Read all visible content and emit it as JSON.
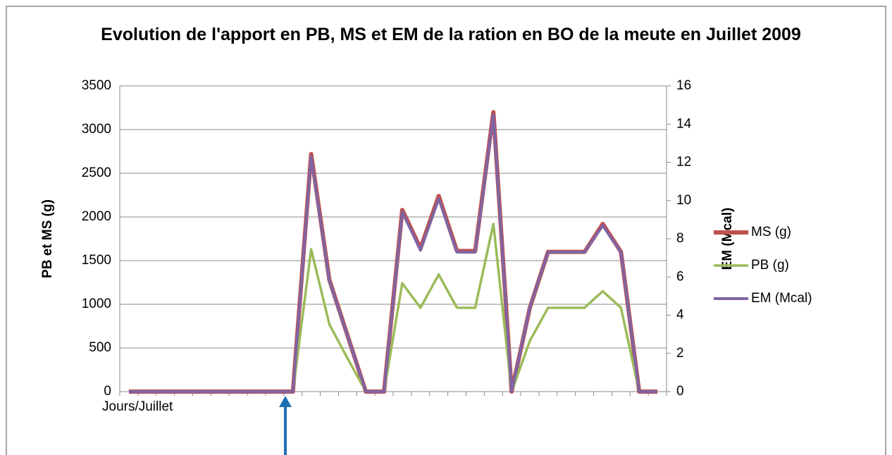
{
  "chart_data": {
    "type": "line",
    "title": "Evolution de l'apport en PB, MS et EM de la ration en BO de la meute en Juillet 2009",
    "x_label": "Jours/Juillet",
    "y_label": "PB et MS (g)",
    "y2_label": "EM (Mcal)",
    "categories": [
      null,
      null,
      null,
      null,
      null,
      null,
      null,
      null,
      null,
      null,
      null,
      null,
      null,
      null,
      null,
      null,
      null,
      null,
      null,
      null,
      null,
      null,
      null,
      null,
      null,
      null,
      null,
      null,
      null,
      null
    ],
    "ylim": [
      0,
      3500
    ],
    "yticks": [
      0,
      500,
      1000,
      1500,
      2000,
      2500,
      3000,
      3500
    ],
    "y2lim": [
      0,
      16
    ],
    "y2ticks": [
      0,
      2,
      4,
      6,
      8,
      10,
      12,
      14,
      16
    ],
    "grid": true,
    "legend": "right",
    "series": [
      {
        "name": "MS (g)",
        "color": "#c0504d",
        "values": [
          0,
          0,
          0,
          0,
          0,
          0,
          0,
          0,
          0,
          0,
          2720,
          1280,
          640,
          0,
          0,
          2080,
          1640,
          2240,
          1610,
          1610,
          3200,
          0,
          960,
          1600,
          1600,
          1600,
          1920,
          1600,
          0,
          0
        ]
      },
      {
        "name": "PB (g)",
        "color": "#9bbb59",
        "values": [
          0,
          0,
          0,
          0,
          0,
          0,
          0,
          0,
          0,
          0,
          1630,
          770,
          380,
          0,
          0,
          1240,
          960,
          1340,
          960,
          960,
          1920,
          0,
          580,
          960,
          960,
          960,
          1150,
          960,
          0,
          0
        ]
      },
      {
        "name": "EM (Mcal)",
        "color": "#8064a2",
        "axis": "y2",
        "values": [
          0,
          0,
          0,
          0,
          0,
          0,
          0,
          0,
          0,
          0,
          12.3,
          5.8,
          2.9,
          0,
          0,
          9.4,
          7.4,
          10.1,
          7.3,
          7.3,
          14.5,
          0,
          4.4,
          7.3,
          7.3,
          7.3,
          8.7,
          7.3,
          0,
          0
        ]
      }
    ]
  }
}
